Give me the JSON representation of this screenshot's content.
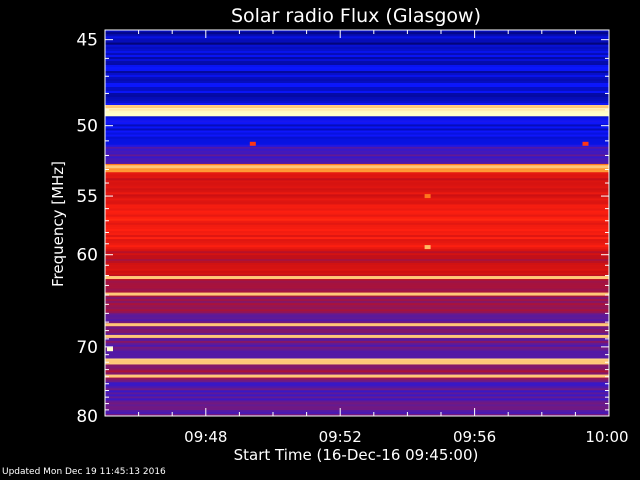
{
  "chart_data": {
    "type": "heatmap",
    "title": "Solar radio Flux (Glasgow)",
    "xlabel": "Start Time (16-Dec-16 09:45:00)",
    "ylabel": "Frequency [MHz]",
    "x_ticks": [
      "09:48",
      "09:52",
      "09:56",
      "10:00"
    ],
    "x_tick_minutes": [
      3,
      7,
      11,
      15
    ],
    "xlim_minutes_after_start": [
      0,
      15
    ],
    "y_ticks": [
      45,
      50,
      55,
      60,
      70,
      80
    ],
    "ylim": [
      44.5,
      80
    ],
    "y_scale": "reciprocal",
    "colormap": [
      "#000050",
      "#0a16ff",
      "#6a1a8a",
      "#c80f12",
      "#ff2010",
      "#ff8a20",
      "#ffffc8"
    ],
    "bands": [
      {
        "from": 44.5,
        "to": 45.6,
        "level": 0.08
      },
      {
        "from": 45.6,
        "to": 48.7,
        "level": 0.12
      },
      {
        "from": 48.7,
        "to": 49.4,
        "level": 1.0
      },
      {
        "from": 49.4,
        "to": 51.4,
        "level": 0.15
      },
      {
        "from": 51.4,
        "to": 52.6,
        "level": 0.3
      },
      {
        "from": 52.6,
        "to": 53.2,
        "level": 0.85
      },
      {
        "from": 53.2,
        "to": 55.5,
        "level": 0.55
      },
      {
        "from": 55.5,
        "to": 59.5,
        "level": 0.62
      },
      {
        "from": 59.5,
        "to": 62.5,
        "level": 0.5
      },
      {
        "from": 62.5,
        "to": 66.0,
        "level": 0.42
      },
      {
        "from": 66.0,
        "to": 71.5,
        "level": 0.34
      },
      {
        "from": 71.5,
        "to": 72.3,
        "level": 0.9
      },
      {
        "from": 72.3,
        "to": 74.5,
        "level": 0.4
      },
      {
        "from": 74.5,
        "to": 77.5,
        "level": 0.28
      },
      {
        "from": 77.5,
        "to": 80.0,
        "level": 0.32
      }
    ],
    "bright_lines": [
      48.8,
      52.8,
      62.2,
      63.9,
      67.3,
      68.7,
      71.9,
      73.9
    ],
    "hot_spots": [
      {
        "time_min": 9.6,
        "freq": 55.0,
        "level": 0.8
      },
      {
        "time_min": 9.6,
        "freq": 59.3,
        "level": 0.9
      },
      {
        "time_min": 4.4,
        "freq": 51.2,
        "level": 0.7
      },
      {
        "time_min": 14.3,
        "freq": 51.2,
        "level": 0.7
      },
      {
        "time_min": 0.15,
        "freq": 70.3,
        "level": 1.0
      }
    ]
  },
  "footer": {
    "updated": "Updated Mon Dec 19 11:45:13 2016"
  }
}
